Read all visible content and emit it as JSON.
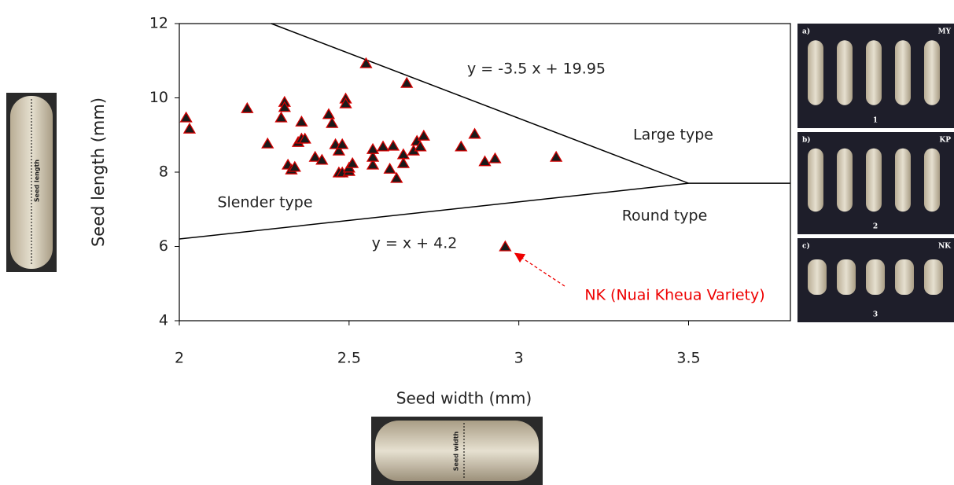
{
  "chart_data": {
    "type": "scatter",
    "xlabel": "Seed width (mm)",
    "ylabel": "Seed length (mm)",
    "xlim": [
      2,
      3.8
    ],
    "ylim": [
      4,
      12
    ],
    "xticks": [
      2,
      2.5,
      3,
      3.5
    ],
    "yticks": [
      4,
      6,
      8,
      10,
      12
    ],
    "marker_color": "#1a1a1a",
    "marker_edge": "#d40000",
    "x": [
      2.02,
      2.03,
      2.2,
      2.26,
      2.3,
      2.31,
      2.31,
      2.32,
      2.33,
      2.34,
      2.35,
      2.36,
      2.36,
      2.37,
      2.4,
      2.42,
      2.44,
      2.45,
      2.46,
      2.47,
      2.47,
      2.48,
      2.48,
      2.49,
      2.49,
      2.5,
      2.5,
      2.51,
      2.55,
      2.57,
      2.57,
      2.57,
      2.6,
      2.62,
      2.63,
      2.64,
      2.66,
      2.66,
      2.67,
      2.69,
      2.7,
      2.71,
      2.72,
      2.83,
      2.87,
      2.9,
      2.93,
      2.96,
      3.11
    ],
    "values": [
      9.46,
      9.16,
      9.71,
      8.76,
      9.46,
      9.88,
      9.74,
      8.19,
      8.06,
      8.13,
      8.8,
      8.89,
      9.35,
      8.89,
      8.4,
      8.32,
      9.55,
      9.31,
      8.74,
      7.98,
      8.57,
      7.98,
      8.74,
      9.97,
      9.84,
      8.02,
      8.11,
      8.23,
      10.92,
      8.19,
      8.4,
      8.61,
      8.68,
      8.08,
      8.7,
      7.83,
      8.47,
      8.23,
      10.39,
      8.57,
      8.83,
      8.68,
      8.97,
      8.68,
      9.02,
      8.28,
      8.36,
      5.99,
      8.4
    ],
    "lines": [
      {
        "name": "y = -3.5 x + 19.95",
        "x": [
          2.271,
          3.5,
          3.8
        ],
        "y": [
          12,
          7.7,
          7.7
        ]
      },
      {
        "name": "y = x + 4.2",
        "x": [
          2,
          3.5
        ],
        "y": [
          6.2,
          7.7
        ]
      }
    ],
    "regions": [
      "Slender type",
      "Large type",
      "Round type"
    ],
    "highlight": {
      "text": "NK (Nuai Kheua Variety)",
      "index": 47
    }
  },
  "photos": {
    "length": "Seed length",
    "width": "Seed width",
    "panels": [
      {
        "tag": "a)",
        "name": "MY",
        "number": "1"
      },
      {
        "tag": "b)",
        "name": "KP",
        "number": "2"
      },
      {
        "tag": "c)",
        "name": "NK",
        "number": "3"
      }
    ]
  }
}
